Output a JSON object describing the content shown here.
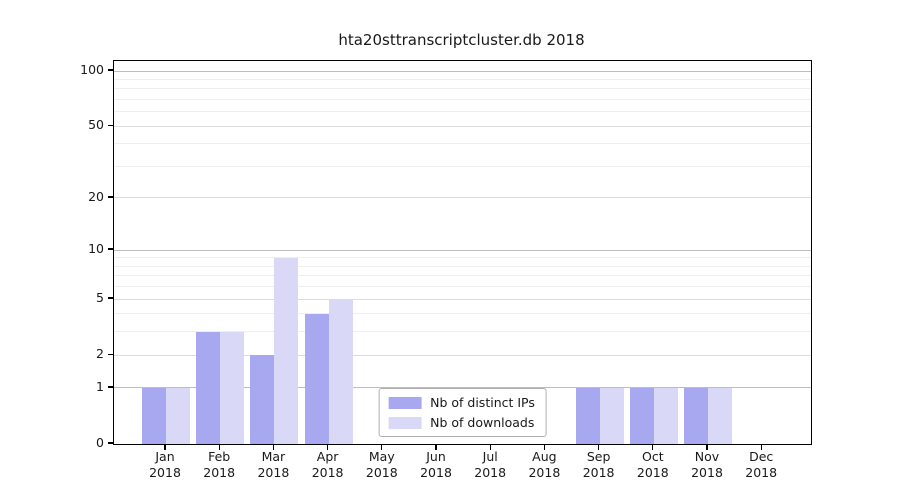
{
  "figure": {
    "background": "#ffffff"
  },
  "chart_data": {
    "type": "bar",
    "title": "hta20sttranscriptcluster.db 2018",
    "categories": [
      "Jan",
      "Feb",
      "Mar",
      "Apr",
      "May",
      "Jun",
      "Jul",
      "Aug",
      "Sep",
      "Oct",
      "Nov",
      "Dec"
    ],
    "x_tick_year": "2018",
    "series": [
      {
        "name": "Nb of distinct IPs",
        "color": "#a8a8f0",
        "values": [
          1,
          3,
          2,
          4,
          0,
          0,
          0,
          0,
          1,
          1,
          1,
          0
        ]
      },
      {
        "name": "Nb of downloads",
        "color": "#d9d9f7",
        "values": [
          1,
          3,
          9,
          5,
          0,
          0,
          0,
          0,
          1,
          1,
          1,
          0
        ]
      }
    ],
    "xlabel": "",
    "ylabel": "",
    "y_scale": "log1p",
    "ylim": [
      0,
      114
    ],
    "y_ticks": [
      0,
      1,
      2,
      5,
      10,
      20,
      50,
      100
    ],
    "y_minor_ticks": [
      3,
      4,
      6,
      7,
      8,
      9,
      30,
      40,
      60,
      70,
      80,
      90
    ],
    "grid": true,
    "legend": {
      "position": "lower center",
      "entries": [
        "Nb of distinct IPs",
        "Nb of downloads"
      ]
    }
  },
  "colors": {
    "bar_ips": "#a8a8f0",
    "bar_downloads": "#d9d9f7",
    "grid_strong": "#bdbdbd",
    "grid_major": "#dcdcdc",
    "grid_minor": "#efefef",
    "spine": "#000000",
    "text": "#191919",
    "legend_border": "#b0b0b0"
  }
}
